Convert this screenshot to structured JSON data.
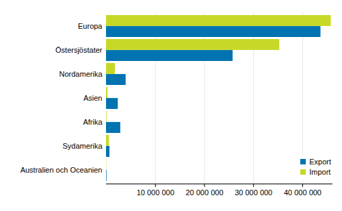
{
  "chart_data": {
    "type": "bar",
    "orientation": "horizontal",
    "categories": [
      "Europa",
      "Östersjöstater",
      "Nordamerika",
      "Asien",
      "Afrika",
      "Sydamerika",
      "Australien och Oceanien"
    ],
    "series": [
      {
        "name": "Export",
        "color": "#0073b0",
        "values": [
          43700000,
          25800000,
          4000000,
          2400000,
          2900000,
          700000,
          100000
        ]
      },
      {
        "name": "Import",
        "color": "#c6d928",
        "values": [
          45800000,
          35300000,
          1800000,
          300000,
          100000,
          600000,
          50000
        ]
      }
    ],
    "xlim": [
      0,
      46000000
    ],
    "xticks": [
      {
        "value": 10000000,
        "label": "10 000 000"
      },
      {
        "value": 20000000,
        "label": "20 000 000"
      },
      {
        "value": 30000000,
        "label": "30 000 000"
      },
      {
        "value": 40000000,
        "label": "40 000 000"
      }
    ],
    "grid": true,
    "legend": "bottom-right"
  }
}
